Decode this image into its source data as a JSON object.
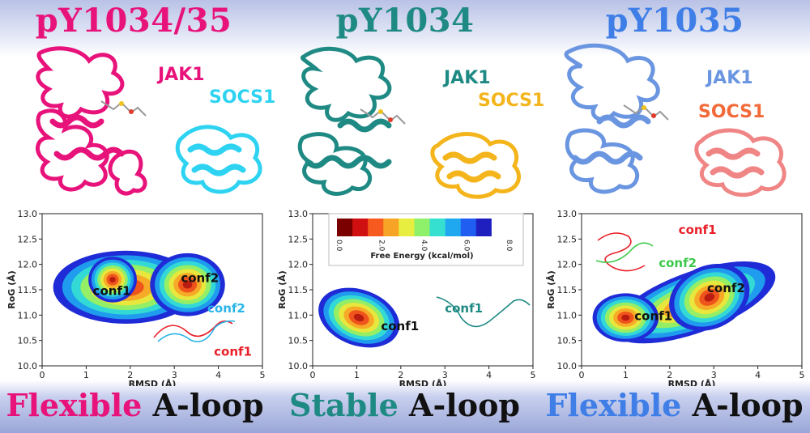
{
  "panels": [
    {
      "title": "pY1034/35",
      "title_color": "#e8127b",
      "jak_label": "JAK1",
      "socs_label": "SOCS1",
      "jak_color": "#e8127b",
      "socs_color": "#2ed3f2",
      "bottom_word1": "Flexible",
      "bottom_word2": "A-loop",
      "bottom_color": "#e8127b",
      "conf_labels": [
        {
          "text": "conf1",
          "color": "#111111"
        },
        {
          "text": "conf2",
          "color": "#111111"
        },
        {
          "text": "conf2",
          "color": "#2ab4e8"
        },
        {
          "text": "conf1",
          "color": "#e8202a"
        }
      ]
    },
    {
      "title": "pY1034",
      "title_color": "#1f8a84",
      "jak_label": "JAK1",
      "socs_label": "SOCS1",
      "jak_color": "#1f8a84",
      "socs_color": "#f4b51c",
      "bottom_word1": "Stable",
      "bottom_word2": "A-loop",
      "bottom_color": "#1f8a84",
      "conf_labels": [
        {
          "text": "conf1",
          "color": "#111111"
        },
        {
          "text": "conf1",
          "color": "#1f8a84"
        }
      ]
    },
    {
      "title": "pY1035",
      "title_color": "#3f7ee6",
      "jak_label": "JAK1",
      "socs_label": "SOCS1",
      "jak_color": "#6a95e0",
      "socs_color": "#f26a3a",
      "bottom_word1": "Flexible",
      "bottom_word2": "A-loop",
      "bottom_color": "#3f7ee6",
      "conf_labels": [
        {
          "text": "conf1",
          "color": "#111111"
        },
        {
          "text": "conf2",
          "color": "#111111"
        },
        {
          "text": "conf1",
          "color": "#e8202a"
        },
        {
          "text": "conf2",
          "color": "#3cc94a"
        }
      ]
    }
  ],
  "axes": {
    "xlabel": "RMSD (Å)",
    "ylabel": "RoG (Å)",
    "x_ticks": [
      "0",
      "1",
      "2",
      "3",
      "4",
      "5"
    ],
    "y_ticks": [
      "10.0",
      "10.5",
      "11.0",
      "11.5",
      "12.0",
      "12.5",
      "13.0"
    ],
    "x_range": [
      0,
      5
    ],
    "y_range": [
      10.0,
      13.0
    ]
  },
  "colorbar": {
    "label": "Free Energy (kcal/mol)",
    "ticks": [
      "0.0",
      "2.0",
      "4.0",
      "6.0",
      "8.0"
    ],
    "range": [
      0,
      8
    ]
  }
}
